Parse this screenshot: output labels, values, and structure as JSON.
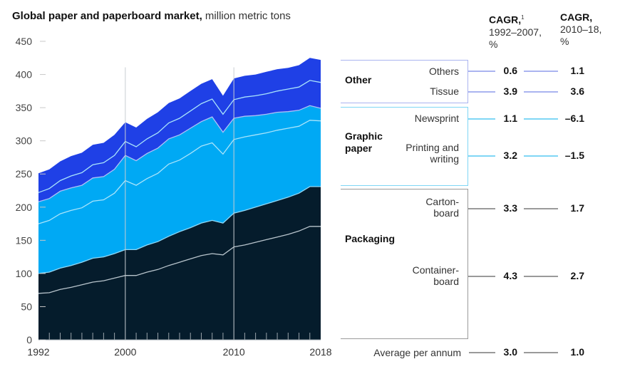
{
  "title": {
    "bold": "Global paper and paperboard market,",
    "unit": "million metric tons"
  },
  "columns": {
    "cagr1": {
      "label": "CAGR,",
      "footnote": "1",
      "period": "1992–2007,",
      "unit": "%"
    },
    "cagr2": {
      "label": "CAGR,",
      "period": "2010–18,",
      "unit": "%"
    }
  },
  "colors": {
    "containerboard": "#051c2c",
    "cartonboard": "#051c2c",
    "printing_writing": "#00a9f4",
    "newsprint": "#00a9f4",
    "tissue": "#1f40e6",
    "others": "#1f40e6",
    "box_other": "#aab4f0",
    "box_graphic": "#7fd6f5",
    "box_packaging": "#9a9a9a",
    "divider": "#ffffff"
  },
  "groups": [
    {
      "name": "Other",
      "items": [
        {
          "label": "Others",
          "cagr_1992_2007": "0.6",
          "cagr_2010_18": "1.1"
        },
        {
          "label": "Tissue",
          "cagr_1992_2007": "3.9",
          "cagr_2010_18": "3.6"
        }
      ]
    },
    {
      "name": "Graphic paper",
      "items": [
        {
          "label": "Newsprint",
          "cagr_1992_2007": "1.1",
          "cagr_2010_18": "–6.1"
        },
        {
          "label": "Printing and writing",
          "cagr_1992_2007": "3.2",
          "cagr_2010_18": "–1.5"
        }
      ]
    },
    {
      "name": "Packaging",
      "items": [
        {
          "label": "Carton-board",
          "cagr_1992_2007": "3.3",
          "cagr_2010_18": "1.7"
        },
        {
          "label": "Container-board",
          "cagr_1992_2007": "4.3",
          "cagr_2010_18": "2.7"
        }
      ]
    }
  ],
  "average": {
    "label": "Average per annum",
    "cagr_1992_2007": "3.0",
    "cagr_2010_18": "1.0"
  },
  "chart_data": {
    "type": "area",
    "stacked": true,
    "title": "Global paper and paperboard market, million metric tons",
    "xlabel": "",
    "ylabel": "million metric tons",
    "ylim": [
      0,
      450
    ],
    "yticks": [
      0,
      50,
      100,
      150,
      200,
      250,
      300,
      350,
      400,
      450
    ],
    "xlim": [
      1992,
      2018
    ],
    "xtick_labels": [
      "1992",
      "2000",
      "2010",
      "2018"
    ],
    "x": [
      1992,
      1993,
      1994,
      1995,
      1996,
      1997,
      1998,
      1999,
      2000,
      2001,
      2002,
      2003,
      2004,
      2005,
      2006,
      2007,
      2008,
      2009,
      2010,
      2011,
      2012,
      2013,
      2014,
      2015,
      2016,
      2017,
      2018
    ],
    "series": [
      {
        "name": "Containerboard",
        "values": [
          70,
          71,
          76,
          79,
          83,
          87,
          89,
          93,
          97,
          97,
          102,
          106,
          112,
          117,
          122,
          127,
          130,
          128,
          140,
          143,
          147,
          151,
          155,
          159,
          164,
          171,
          171
        ]
      },
      {
        "name": "Cartonboard",
        "values": [
          30,
          31,
          32,
          33,
          34,
          36,
          36,
          37,
          39,
          39,
          41,
          42,
          44,
          46,
          47,
          49,
          50,
          48,
          51,
          52,
          53,
          54,
          55,
          56,
          57,
          60,
          60
        ]
      },
      {
        "name": "Printing and writing",
        "values": [
          75,
          78,
          82,
          83,
          82,
          86,
          86,
          91,
          104,
          97,
          100,
          103,
          109,
          108,
          112,
          116,
          117,
          104,
          111,
          111,
          109,
          107,
          106,
          104,
          101,
          100,
          99
        ]
      },
      {
        "name": "Newsprint",
        "values": [
          33,
          33,
          34,
          34,
          34,
          35,
          35,
          36,
          38,
          37,
          38,
          38,
          38,
          38,
          38,
          37,
          39,
          33,
          32,
          31,
          29,
          28,
          27,
          25,
          24,
          22,
          19
        ]
      },
      {
        "name": "Tissue",
        "values": [
          14,
          15,
          16,
          18,
          19,
          20,
          21,
          21,
          21,
          21,
          22,
          23,
          24,
          25,
          26,
          27,
          27,
          27,
          28,
          29,
          30,
          31,
          32,
          34,
          35,
          38,
          39
        ]
      },
      {
        "name": "Others",
        "values": [
          29,
          29,
          29,
          30,
          30,
          30,
          30,
          31,
          29,
          29,
          30,
          31,
          30,
          30,
          30,
          30,
          30,
          28,
          32,
          32,
          32,
          33,
          33,
          32,
          33,
          34,
          34
        ]
      }
    ],
    "vertical_markers": [
      2000,
      2010
    ],
    "legend": "right (bracketed labels)"
  }
}
